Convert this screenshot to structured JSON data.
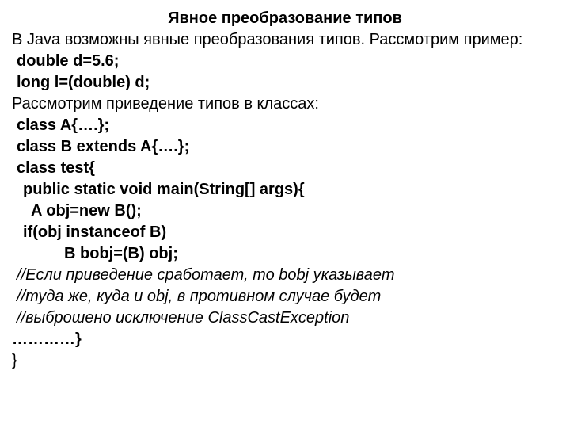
{
  "title": "Явное преобразование типов",
  "lines": {
    "l1": "В Java возможны явные преобразования типов. Рассмотрим пример:",
    "l2": "double d=5.6;",
    "l3": "long l=(double) d;",
    "l4": "Рассмотрим приведение типов в классах:",
    "l5": "class A{….};",
    "l6": "class B extends A{….};",
    "l7": "class test{",
    "l8": "public static void main(String[] args){",
    "l9": "A obj=new B();",
    "l10": "if(obj instanceof B)",
    "l11": "B bobj=(B) obj;",
    "l12": "//Если приведение сработает, то bobj указывает",
    "l13": "//туда же, куда и obj, в противном случае будет",
    "l14": "//выброшено исключение ClassCastException",
    "l15": "…………}",
    "l16": "}"
  }
}
